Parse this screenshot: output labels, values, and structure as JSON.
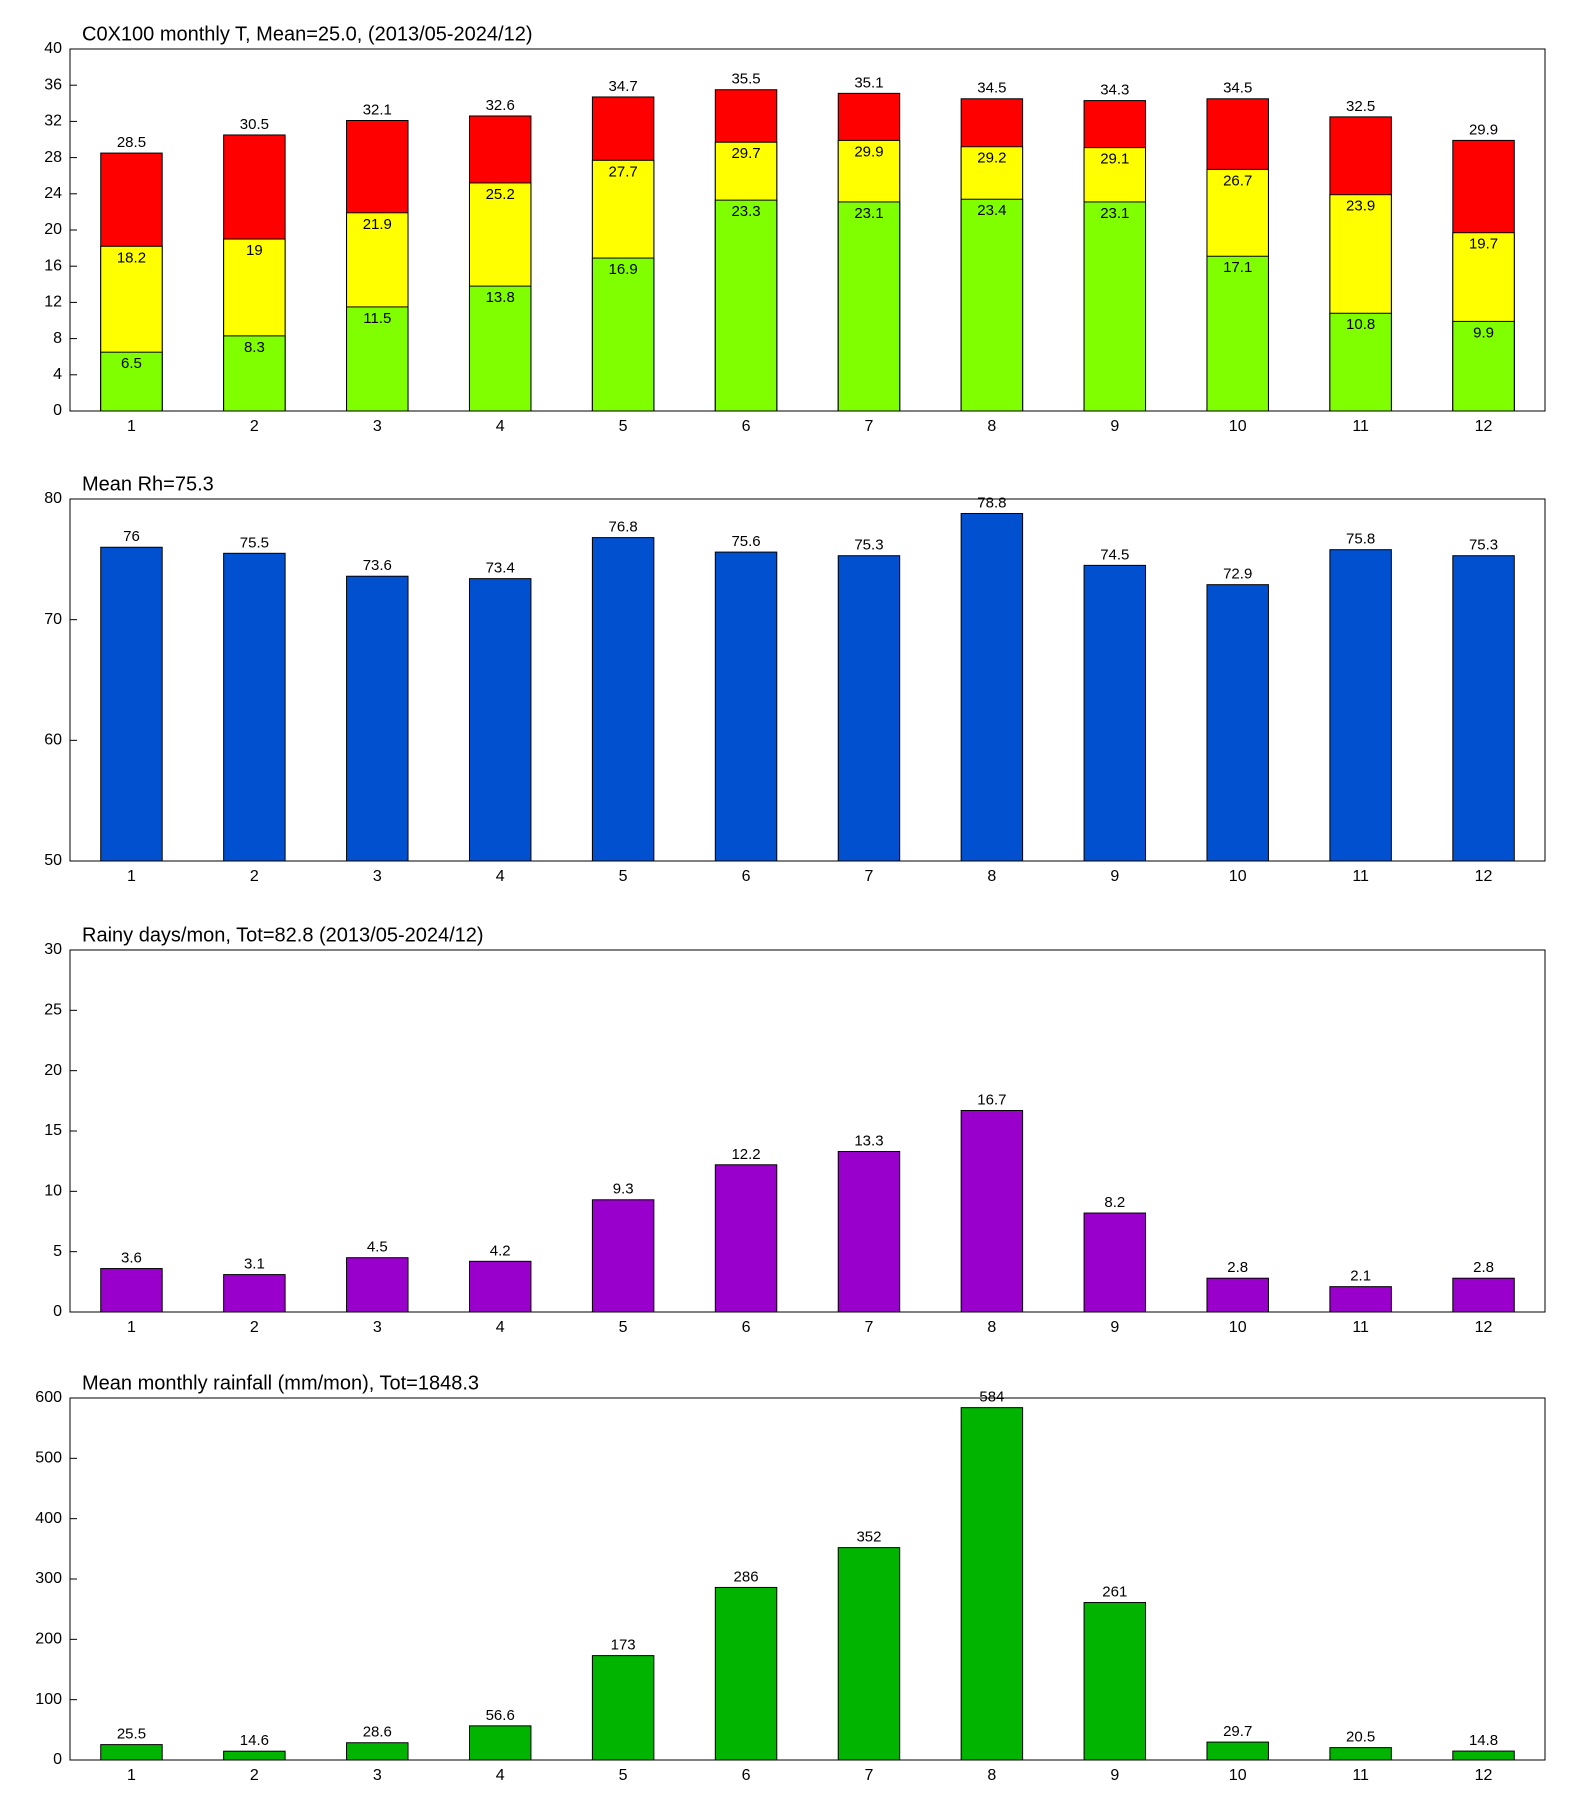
{
  "chart_data": [
    {
      "type": "bar",
      "title": "C0X100 monthly T, Mean=25.0, (2013/05-2024/12)",
      "categories": [
        1,
        2,
        3,
        4,
        5,
        6,
        7,
        8,
        9,
        10,
        11,
        12
      ],
      "series": [
        {
          "color": "#ff0000",
          "values": [
            28.5,
            30.5,
            32.1,
            32.6,
            34.7,
            35.5,
            35.1,
            34.5,
            34.3,
            34.5,
            32.5,
            29.9
          ]
        },
        {
          "color": "#ffff00",
          "values": [
            18.2,
            19,
            21.9,
            25.2,
            27.7,
            29.7,
            29.9,
            29.2,
            29.1,
            26.7,
            23.9,
            19.7
          ]
        },
        {
          "color": "#80ff00",
          "values": [
            6.5,
            8.3,
            11.5,
            13.8,
            16.9,
            23.3,
            23.1,
            23.4,
            23.1,
            17.1,
            10.8,
            9.9
          ]
        }
      ],
      "ylim": [
        0,
        40
      ],
      "yticks": [
        0,
        4,
        8,
        12,
        16,
        20,
        24,
        28,
        32,
        36,
        40
      ]
    },
    {
      "type": "bar",
      "title": "Mean Rh=75.3",
      "categories": [
        1,
        2,
        3,
        4,
        5,
        6,
        7,
        8,
        9,
        10,
        11,
        12
      ],
      "series": [
        {
          "color": "#0050d0",
          "values": [
            76,
            75.5,
            73.6,
            73.4,
            76.8,
            75.6,
            75.3,
            78.8,
            74.5,
            72.9,
            75.8,
            75.3
          ]
        }
      ],
      "ylim": [
        50,
        80
      ],
      "yticks": [
        50,
        60,
        70,
        80
      ]
    },
    {
      "type": "bar",
      "title": "Rainy days/mon, Tot=82.8 (2013/05-2024/12)",
      "categories": [
        1,
        2,
        3,
        4,
        5,
        6,
        7,
        8,
        9,
        10,
        11,
        12
      ],
      "series": [
        {
          "color": "#9900cc",
          "values": [
            3.6,
            3.1,
            4.5,
            4.2,
            9.3,
            12.2,
            13.3,
            16.7,
            8.2,
            2.8,
            2.1,
            2.8
          ]
        }
      ],
      "ylim": [
        0,
        30
      ],
      "yticks": [
        0,
        5,
        10,
        15,
        20,
        25,
        30
      ]
    },
    {
      "type": "bar",
      "title": "Mean monthly rainfall (mm/mon), Tot=1848.3",
      "categories": [
        1,
        2,
        3,
        4,
        5,
        6,
        7,
        8,
        9,
        10,
        11,
        12
      ],
      "series": [
        {
          "color": "#00b400",
          "values": [
            25.5,
            14.6,
            28.6,
            56.6,
            173,
            286,
            352,
            584,
            261,
            29.7,
            20.5,
            14.8
          ]
        }
      ],
      "ylim": [
        0,
        600
      ],
      "yticks": [
        0,
        100,
        200,
        300,
        400,
        500,
        600
      ]
    }
  ]
}
